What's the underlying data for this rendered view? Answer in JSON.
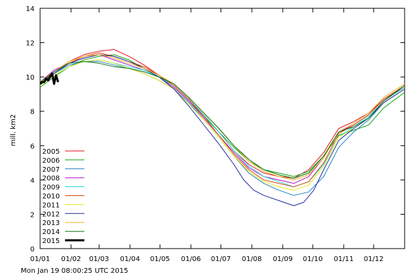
{
  "chart_data": {
    "type": "line",
    "title": "",
    "xlabel": "",
    "ylabel": "mill. km2",
    "ylim": [
      0,
      14
    ],
    "yticks": [
      0,
      2,
      4,
      6,
      8,
      10,
      12,
      14
    ],
    "xlim": [
      1,
      366
    ],
    "xticks": [
      {
        "day": 1,
        "label": "01/01"
      },
      {
        "day": 32,
        "label": "01/02"
      },
      {
        "day": 60,
        "label": "01/03"
      },
      {
        "day": 91,
        "label": "01/04"
      },
      {
        "day": 121,
        "label": "01/05"
      },
      {
        "day": 152,
        "label": "01/06"
      },
      {
        "day": 182,
        "label": "01/07"
      },
      {
        "day": 213,
        "label": "01/08"
      },
      {
        "day": 244,
        "label": "01/09"
      },
      {
        "day": 274,
        "label": "01/10"
      },
      {
        "day": 305,
        "label": "01/11"
      },
      {
        "day": 335,
        "label": "01/12"
      }
    ],
    "grid": false,
    "legend_position": "bottom-left",
    "series": [
      {
        "name": "2005",
        "color": "#e8121e",
        "width": 1,
        "x": [
          1,
          15,
          30,
          45,
          60,
          75,
          90,
          105,
          120,
          135,
          150,
          165,
          180,
          195,
          210,
          225,
          240,
          255,
          270,
          285,
          300,
          315,
          330,
          345,
          366
        ],
        "y": [
          9.6,
          10.3,
          10.9,
          11.3,
          11.5,
          11.6,
          11.2,
          10.7,
          10.1,
          9.5,
          8.7,
          7.8,
          6.8,
          5.7,
          4.9,
          4.4,
          4.2,
          4.1,
          4.6,
          5.6,
          7.0,
          7.4,
          7.9,
          8.7,
          9.4
        ]
      },
      {
        "name": "2006",
        "color": "#13a413",
        "width": 1,
        "x": [
          1,
          15,
          30,
          45,
          60,
          75,
          90,
          105,
          120,
          135,
          150,
          165,
          180,
          195,
          210,
          225,
          240,
          255,
          270,
          285,
          300,
          315,
          330,
          345,
          366
        ],
        "y": [
          9.4,
          10.0,
          10.6,
          11.0,
          11.2,
          11.3,
          11.0,
          10.5,
          10.0,
          9.4,
          8.6,
          7.7,
          6.8,
          5.9,
          5.1,
          4.6,
          4.4,
          4.2,
          4.5,
          5.4,
          6.6,
          6.9,
          7.2,
          8.2,
          9.1
        ]
      },
      {
        "name": "2007",
        "color": "#1a7fc2",
        "width": 1,
        "x": [
          1,
          15,
          30,
          45,
          60,
          75,
          90,
          105,
          120,
          135,
          150,
          165,
          180,
          195,
          210,
          225,
          240,
          255,
          270,
          285,
          300,
          315,
          330,
          345,
          366
        ],
        "y": [
          9.6,
          10.2,
          10.7,
          10.9,
          10.9,
          10.7,
          10.5,
          10.2,
          9.8,
          9.3,
          8.5,
          7.5,
          6.5,
          5.4,
          4.4,
          3.8,
          3.4,
          3.1,
          3.3,
          4.2,
          5.9,
          6.8,
          7.5,
          8.5,
          9.3
        ]
      },
      {
        "name": "2008",
        "color": "#b512c2",
        "width": 1,
        "x": [
          1,
          15,
          30,
          45,
          60,
          75,
          90,
          105,
          120,
          135,
          150,
          165,
          180,
          195,
          210,
          225,
          240,
          255,
          270,
          285,
          300,
          315,
          330,
          345,
          366
        ],
        "y": [
          9.7,
          10.4,
          10.8,
          11.1,
          11.3,
          11.0,
          10.7,
          10.4,
          10.0,
          9.4,
          8.6,
          7.6,
          6.6,
          5.6,
          4.7,
          4.2,
          4.0,
          3.8,
          4.2,
          5.3,
          6.8,
          7.2,
          7.8,
          8.7,
          9.5
        ]
      },
      {
        "name": "2009",
        "color": "#1fd8d8",
        "width": 1,
        "x": [
          1,
          15,
          30,
          45,
          60,
          75,
          90,
          105,
          120,
          135,
          150,
          165,
          180,
          195,
          210,
          225,
          240,
          255,
          270,
          285,
          300,
          315,
          330,
          345,
          366
        ],
        "y": [
          9.5,
          10.1,
          10.6,
          10.9,
          11.0,
          10.8,
          10.6,
          10.4,
          10.0,
          9.5,
          8.7,
          7.8,
          6.8,
          5.7,
          4.8,
          4.2,
          3.9,
          3.6,
          3.9,
          4.9,
          6.5,
          7.1,
          7.7,
          8.6,
          9.4
        ]
      },
      {
        "name": "2010",
        "color": "#d5470e",
        "width": 1,
        "x": [
          1,
          15,
          30,
          45,
          60,
          75,
          90,
          105,
          120,
          135,
          150,
          165,
          180,
          195,
          210,
          225,
          240,
          255,
          270,
          285,
          300,
          315,
          330,
          345,
          366
        ],
        "y": [
          9.6,
          10.3,
          10.8,
          11.2,
          11.4,
          11.2,
          10.9,
          10.6,
          10.1,
          9.5,
          8.7,
          7.7,
          6.6,
          5.5,
          4.6,
          4.0,
          3.8,
          3.6,
          3.9,
          5.0,
          6.7,
          7.2,
          7.8,
          8.7,
          9.5
        ]
      },
      {
        "name": "2011",
        "color": "#e8e81a",
        "width": 1,
        "x": [
          1,
          15,
          30,
          45,
          60,
          75,
          90,
          105,
          120,
          135,
          150,
          165,
          180,
          195,
          210,
          225,
          240,
          255,
          270,
          285,
          300,
          315,
          330,
          345,
          366
        ],
        "y": [
          9.5,
          10.1,
          10.6,
          10.9,
          11.0,
          10.8,
          10.5,
          10.2,
          9.8,
          9.3,
          8.4,
          7.5,
          6.5,
          5.4,
          4.5,
          3.9,
          3.6,
          3.4,
          3.7,
          4.8,
          6.5,
          7.0,
          7.6,
          8.5,
          9.3
        ]
      },
      {
        "name": "2012",
        "color": "#1f2a9c",
        "width": 1,
        "x": [
          1,
          15,
          30,
          45,
          60,
          75,
          90,
          105,
          120,
          135,
          150,
          165,
          180,
          195,
          205,
          215,
          225,
          240,
          255,
          265,
          275,
          285,
          300,
          315,
          330,
          345,
          366
        ],
        "y": [
          9.6,
          10.2,
          10.8,
          11.1,
          11.3,
          11.2,
          10.9,
          10.5,
          10.0,
          9.3,
          8.3,
          7.2,
          6.1,
          4.9,
          4.0,
          3.4,
          3.1,
          2.8,
          2.5,
          2.7,
          3.4,
          4.6,
          6.3,
          7.0,
          7.6,
          8.5,
          9.3
        ]
      },
      {
        "name": "2013",
        "color": "#f0b020",
        "width": 1,
        "x": [
          1,
          15,
          30,
          45,
          60,
          75,
          90,
          105,
          120,
          135,
          150,
          165,
          180,
          195,
          210,
          225,
          240,
          255,
          270,
          285,
          300,
          315,
          330,
          345,
          366
        ],
        "y": [
          9.7,
          10.3,
          10.9,
          11.2,
          11.3,
          11.1,
          10.8,
          10.5,
          10.1,
          9.6,
          8.8,
          7.9,
          7.0,
          6.0,
          5.1,
          4.5,
          4.2,
          4.0,
          4.3,
          5.3,
          6.8,
          7.3,
          7.9,
          8.8,
          9.6
        ]
      },
      {
        "name": "2014",
        "color": "#0b6e0b",
        "width": 1,
        "x": [
          1,
          15,
          30,
          45,
          60,
          75,
          90,
          105,
          120,
          135,
          150,
          165,
          180,
          195,
          210,
          225,
          240,
          255,
          270,
          285,
          300,
          315,
          330,
          345,
          366
        ],
        "y": [
          9.7,
          10.3,
          10.8,
          10.9,
          10.8,
          10.6,
          10.5,
          10.3,
          10.0,
          9.6,
          8.8,
          7.9,
          7.0,
          6.0,
          5.2,
          4.6,
          4.3,
          4.1,
          4.4,
          5.4,
          6.8,
          7.1,
          7.6,
          8.6,
          9.5
        ]
      },
      {
        "name": "2015",
        "color": "#000000",
        "width": 3,
        "x": [
          1,
          3,
          5,
          7,
          9,
          11,
          13,
          15,
          17,
          19
        ],
        "y": [
          9.6,
          9.7,
          9.7,
          9.9,
          9.8,
          10.0,
          10.2,
          9.6,
          10.1,
          9.7
        ]
      }
    ]
  },
  "footer": {
    "timestamp": "Mon Jan 19 08:00:25 UTC 2015"
  }
}
